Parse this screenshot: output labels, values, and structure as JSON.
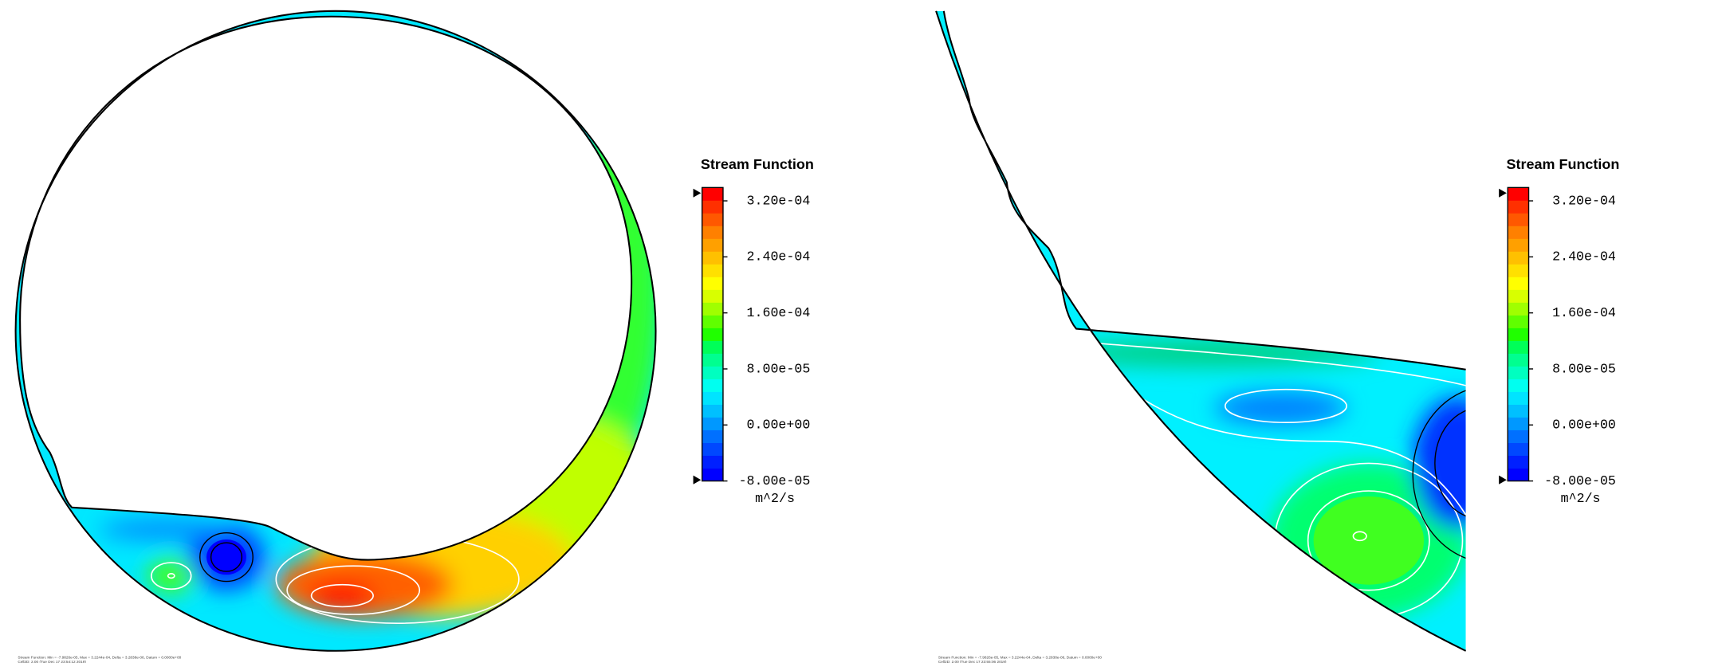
{
  "panels": [
    {
      "title": "Stream Function",
      "units": "m^2/s",
      "footer": [
        "Stream Function: Min = -7.9826e-05, Max = 3.2244e-04, Delta = 3.2838e-06, Datum = 0.0000e+00",
        "Cell2D: 2.00 (Tue Dec 17 23:54:12 2019)"
      ]
    },
    {
      "title": "Stream Function",
      "units": "m^2/s",
      "footer": [
        "Stream Function: Min = -7.9826e-05, Max = 3.2244e-04, Delta = 3.2838e-06, Datum = 0.0000e+00",
        "Cell2D: 2.00 (Tue Dec 17 23:55:06 2019)"
      ]
    }
  ],
  "colorbar": {
    "range": [
      -8e-05,
      0.000339
    ],
    "ticks": [
      {
        "value": 0.00032,
        "label": "3.20e-04"
      },
      {
        "value": 0.00024,
        "label": "2.40e-04"
      },
      {
        "value": 0.00016,
        "label": "1.60e-04"
      },
      {
        "value": 8e-05,
        "label": "8.00e-05"
      },
      {
        "value": 0,
        "label": "0.00e+00"
      },
      {
        "value": -8e-05,
        "label": "-8.00e-05"
      }
    ],
    "colors": [
      "#0000ff",
      "#0020ff",
      "#0048ff",
      "#0070ff",
      "#0098ff",
      "#00c0ff",
      "#00e4ff",
      "#00fff0",
      "#00ffc0",
      "#00ff90",
      "#00ff58",
      "#20ff00",
      "#60ff00",
      "#a0ff00",
      "#d8ff00",
      "#ffff00",
      "#ffe000",
      "#ffc000",
      "#ffa000",
      "#ff8000",
      "#ff5800",
      "#ff3000",
      "#ff0000"
    ]
  }
}
